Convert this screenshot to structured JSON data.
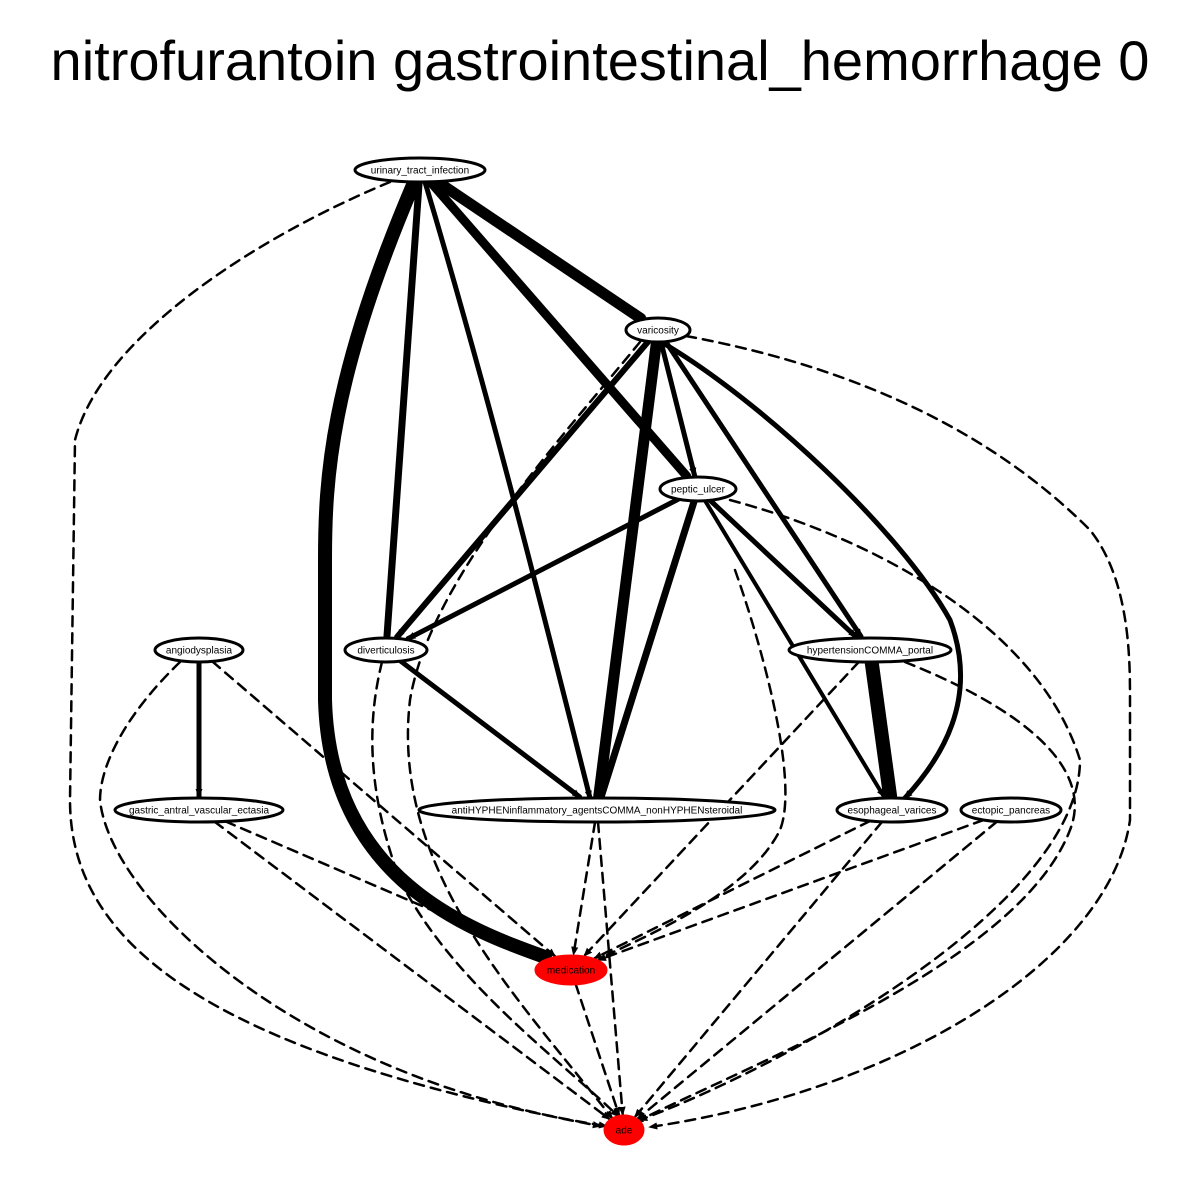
{
  "title": "nitrofurantoin gastrointestinal_hemorrhage 0",
  "colors": {
    "highlight": "#ff0000",
    "stroke": "#000000",
    "background": "#ffffff"
  },
  "nodes": [
    {
      "id": "urinary_tract_infection",
      "label": "urinary_tract_infection",
      "highlight": false
    },
    {
      "id": "varicosity",
      "label": "varicosity",
      "highlight": false
    },
    {
      "id": "peptic_ulcer",
      "label": "peptic_ulcer",
      "highlight": false
    },
    {
      "id": "angiodysplasia",
      "label": "angiodysplasia",
      "highlight": false
    },
    {
      "id": "diverticulosis",
      "label": "diverticulosis",
      "highlight": false
    },
    {
      "id": "hypertension_portal",
      "label": "hypertensionCOMMA_portal",
      "highlight": false
    },
    {
      "id": "gave",
      "label": "gastric_antral_vascular_ectasia",
      "highlight": false
    },
    {
      "id": "nsaid",
      "label": "antiHYPHENinflammatory_agentsCOMMA_nonHYPHENsteroidal",
      "highlight": false
    },
    {
      "id": "esophageal_varices",
      "label": "esophageal_varices",
      "highlight": false
    },
    {
      "id": "ectopic_pancreas",
      "label": "ectopic_pancreas",
      "highlight": false
    },
    {
      "id": "medication",
      "label": "medication",
      "highlight": true
    },
    {
      "id": "ade",
      "label": "ade",
      "highlight": true
    }
  ],
  "edges": [
    {
      "from": "urinary_tract_infection",
      "to": "medication",
      "style": "solid",
      "weight": 14
    },
    {
      "from": "urinary_tract_infection",
      "to": "diverticulosis",
      "style": "solid",
      "weight": 7
    },
    {
      "from": "urinary_tract_infection",
      "to": "nsaid",
      "style": "solid",
      "weight": 5
    },
    {
      "from": "urinary_tract_infection",
      "to": "peptic_ulcer",
      "style": "solid",
      "weight": 9
    },
    {
      "from": "urinary_tract_infection",
      "to": "varicosity",
      "style": "solid",
      "weight": 11
    },
    {
      "from": "urinary_tract_infection",
      "to": "ade",
      "style": "dashed",
      "weight": 2.5
    },
    {
      "from": "varicosity",
      "to": "diverticulosis",
      "style": "solid",
      "weight": 6
    },
    {
      "from": "varicosity",
      "to": "nsaid",
      "style": "solid",
      "weight": 11
    },
    {
      "from": "varicosity",
      "to": "peptic_ulcer",
      "style": "solid",
      "weight": 5
    },
    {
      "from": "varicosity",
      "to": "hypertension_portal",
      "style": "solid",
      "weight": 5
    },
    {
      "from": "varicosity",
      "to": "esophageal_varices",
      "style": "solid",
      "weight": 5
    },
    {
      "from": "varicosity",
      "to": "ade",
      "style": "dashed",
      "weight": 2.5
    },
    {
      "from": "varicosity",
      "to": "ade",
      "style": "dashed",
      "weight": 2.5
    },
    {
      "from": "peptic_ulcer",
      "to": "diverticulosis",
      "style": "solid",
      "weight": 5
    },
    {
      "from": "peptic_ulcer",
      "to": "nsaid",
      "style": "solid",
      "weight": 7
    },
    {
      "from": "peptic_ulcer",
      "to": "hypertension_portal",
      "style": "solid",
      "weight": 5
    },
    {
      "from": "peptic_ulcer",
      "to": "esophageal_varices",
      "style": "solid",
      "weight": 4
    },
    {
      "from": "peptic_ulcer",
      "to": "medication",
      "style": "dashed",
      "weight": 2.5
    },
    {
      "from": "peptic_ulcer",
      "to": "ade",
      "style": "dashed",
      "weight": 2.5
    },
    {
      "from": "angiodysplasia",
      "to": "gave",
      "style": "solid",
      "weight": 5
    },
    {
      "from": "angiodysplasia",
      "to": "medication",
      "style": "dashed",
      "weight": 2.5
    },
    {
      "from": "angiodysplasia",
      "to": "ade",
      "style": "dashed",
      "weight": 2.5
    },
    {
      "from": "diverticulosis",
      "to": "nsaid",
      "style": "solid",
      "weight": 5
    },
    {
      "from": "diverticulosis",
      "to": "ade",
      "style": "dashed",
      "weight": 2.5
    },
    {
      "from": "hypertension_portal",
      "to": "esophageal_varices",
      "style": "solid",
      "weight": 14
    },
    {
      "from": "hypertension_portal",
      "to": "medication",
      "style": "dashed",
      "weight": 2.5
    },
    {
      "from": "hypertension_portal",
      "to": "ade",
      "style": "dashed",
      "weight": 2.5
    },
    {
      "from": "gave",
      "to": "medication",
      "style": "dashed",
      "weight": 2.5
    },
    {
      "from": "gave",
      "to": "ade",
      "style": "dashed",
      "weight": 2.5
    },
    {
      "from": "nsaid",
      "to": "medication",
      "style": "dashed",
      "weight": 2.5
    },
    {
      "from": "nsaid",
      "to": "ade",
      "style": "dashed",
      "weight": 2.5
    },
    {
      "from": "esophageal_varices",
      "to": "medication",
      "style": "dashed",
      "weight": 2.5
    },
    {
      "from": "esophageal_varices",
      "to": "ade",
      "style": "dashed",
      "weight": 2.5
    },
    {
      "from": "ectopic_pancreas",
      "to": "medication",
      "style": "dashed",
      "weight": 2.5
    },
    {
      "from": "ectopic_pancreas",
      "to": "ade",
      "style": "dashed",
      "weight": 2.5
    },
    {
      "from": "medication",
      "to": "ade",
      "style": "dashed",
      "weight": 2.5
    }
  ]
}
